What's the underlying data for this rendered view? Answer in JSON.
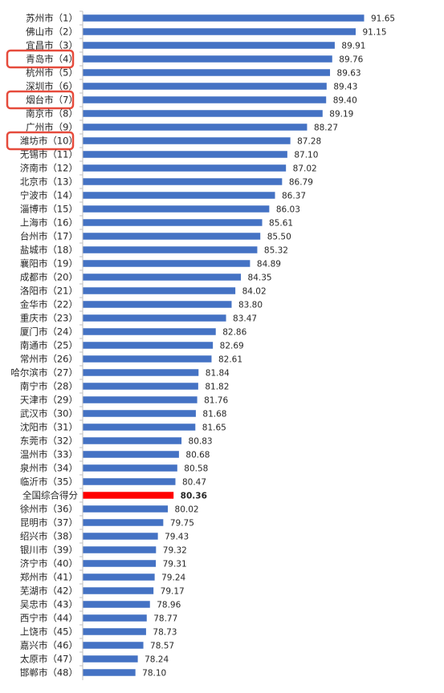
{
  "chart_data": {
    "type": "bar",
    "orientation": "horizontal",
    "categories": [
      "苏州市（1）",
      "佛山市（2）",
      "宜昌市（3）",
      "青岛市（4）",
      "杭州市（5）",
      "深圳市（6）",
      "烟台市（7）",
      "南京市（8）",
      "广州市（9）",
      "潍坊市（10）",
      "无锡市（11）",
      "济南市（12）",
      "北京市（13）",
      "宁波市（14）",
      "淄博市（15）",
      "上海市（16）",
      "台州市（17）",
      "盐城市（18）",
      "襄阳市（19）",
      "成都市（20）",
      "洛阳市（21）",
      "金华市（22）",
      "重庆市（23）",
      "厦门市（24）",
      "南通市（25）",
      "常州市（26）",
      "哈尔滨市（27）",
      "南宁市（28）",
      "天津市（29）",
      "武汉市（30）",
      "沈阳市（31）",
      "东莞市（32）",
      "温州市（33）",
      "泉州市（34）",
      "临沂市（35）",
      "全国综合得分",
      "徐州市（36）",
      "昆明市（37）",
      "绍兴市（38）",
      "银川市（39）",
      "济宁市（40）",
      "郑州市（41）",
      "芜湖市（42）",
      "吴忠市（43）",
      "西宁市（44）",
      "上饶市（45）",
      "嘉兴市（46）",
      "太原市（47）",
      "邯郸市（48）"
    ],
    "values": [
      91.65,
      91.15,
      89.91,
      89.76,
      89.63,
      89.43,
      89.4,
      89.19,
      88.27,
      87.28,
      87.1,
      87.02,
      86.79,
      86.37,
      86.03,
      85.61,
      85.5,
      85.32,
      84.89,
      84.35,
      84.02,
      83.8,
      83.47,
      82.86,
      82.69,
      82.61,
      81.84,
      81.82,
      81.76,
      81.68,
      81.65,
      80.83,
      80.68,
      80.58,
      80.47,
      80.36,
      80.02,
      79.75,
      79.43,
      79.32,
      79.31,
      79.24,
      79.17,
      78.96,
      78.77,
      78.73,
      78.57,
      78.24,
      78.1
    ],
    "value_labels": [
      "91.65",
      "91.15",
      "89.91",
      "89.76",
      "89.63",
      "89.43",
      "89.40",
      "89.19",
      "88.27",
      "87.28",
      "87.10",
      "87.02",
      "86.79",
      "86.37",
      "86.03",
      "85.61",
      "85.50",
      "85.32",
      "84.89",
      "84.35",
      "84.02",
      "83.80",
      "83.47",
      "82.86",
      "82.69",
      "82.61",
      "81.84",
      "81.82",
      "81.76",
      "81.68",
      "81.65",
      "80.83",
      "80.68",
      "80.58",
      "80.47",
      "80.36",
      "80.02",
      "79.75",
      "79.43",
      "79.32",
      "79.31",
      "79.24",
      "79.17",
      "78.96",
      "78.77",
      "78.73",
      "78.57",
      "78.24",
      "78.10"
    ],
    "title": "",
    "xlabel": "",
    "ylabel": "",
    "xlim": [
      75,
      91.65
    ],
    "grid": false,
    "legend": "none",
    "highlighted_category": "全国综合得分",
    "circled_categories": [
      "青岛市（4）",
      "烟台市（7）",
      "潍坊市（10）"
    ],
    "colors": {
      "bar": "#4472c4",
      "highlight_bar": "#ff0000",
      "circle": "#e64b3c",
      "axis": "#bfbfbf",
      "text": "#262626"
    }
  }
}
